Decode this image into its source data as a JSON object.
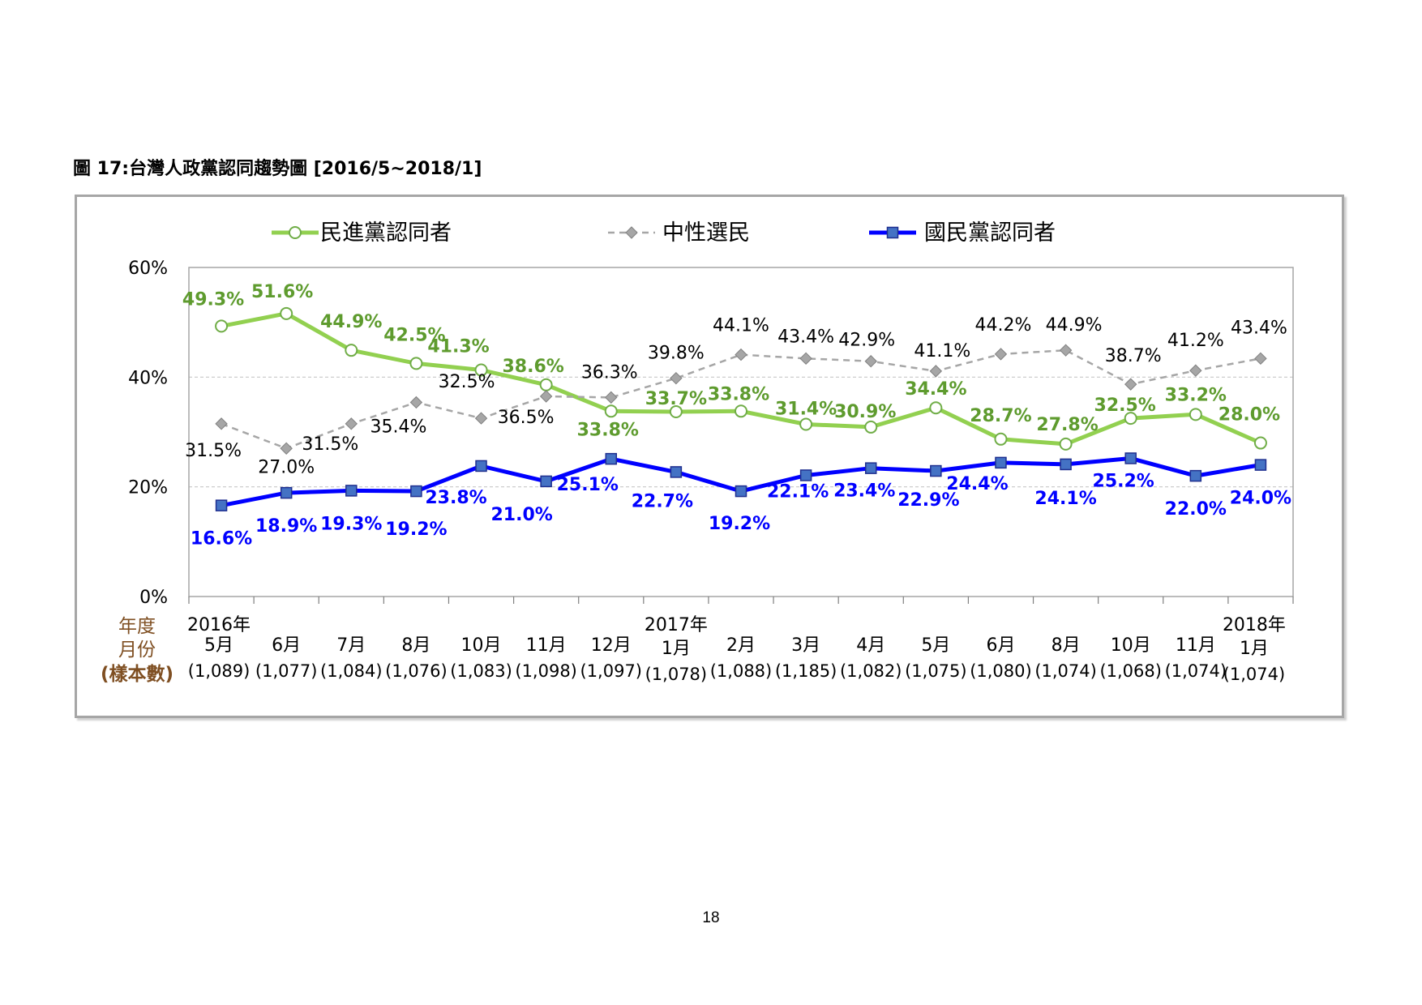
{
  "figure_title": "圖 17:台灣人政黨認同趨勢圖  [2016/5~2018/1]",
  "page_number": "18",
  "colors": {
    "dpp": "#92d050",
    "dpp_label": "#5e9b2e",
    "neutral": "#a6a6a6",
    "kmt": "#0000ff",
    "kmt_marker": "#4472c4",
    "axis_label": "#7f4f22"
  },
  "chart_data": {
    "type": "line",
    "ylim": [
      0,
      60
    ],
    "yticks": [
      "0%",
      "20%",
      "40%",
      "60%"
    ],
    "grid": "horizontal-dashed",
    "legend_position": "top",
    "row_header": [
      "年度",
      "月份",
      "(樣本數)"
    ],
    "x_years": [
      "2016年",
      "",
      "",
      "",
      "",
      "",
      "",
      "2017年",
      "",
      "",
      "",
      "",
      "",
      "",
      "",
      "",
      "2018年"
    ],
    "x_months": [
      "5月",
      "6月",
      "7月",
      "8月",
      "10月",
      "11月",
      "12月",
      "1月",
      "2月",
      "3月",
      "4月",
      "5月",
      "6月",
      "8月",
      "10月",
      "11月",
      "1月"
    ],
    "x_samples": [
      "(1,089)",
      "(1,077)",
      "(1,084)",
      "(1,076)",
      "(1,083)",
      "(1,098)",
      "(1,097)",
      "(1,078)",
      "(1,088)",
      "(1,185)",
      "(1,082)",
      "(1,075)",
      "(1,080)",
      "(1,074)",
      "(1,068)",
      "(1,074)",
      "(1,074)"
    ],
    "series": [
      {
        "name": "民進黨認同者",
        "values": [
          49.3,
          51.6,
          44.9,
          42.5,
          41.3,
          38.6,
          33.8,
          33.7,
          33.8,
          31.4,
          30.9,
          34.4,
          28.7,
          27.8,
          32.5,
          33.2,
          28.0
        ]
      },
      {
        "name": "中性選民",
        "values": [
          31.5,
          27.0,
          31.5,
          35.4,
          32.5,
          36.5,
          36.3,
          39.8,
          44.1,
          43.4,
          42.9,
          41.1,
          44.2,
          44.9,
          38.7,
          41.2,
          43.4
        ]
      },
      {
        "name": "國民黨認同者",
        "values": [
          16.6,
          18.9,
          19.3,
          19.2,
          23.8,
          21.0,
          25.1,
          22.7,
          19.2,
          22.1,
          23.4,
          22.9,
          24.4,
          24.1,
          25.2,
          22.0,
          24.0
        ]
      }
    ]
  }
}
